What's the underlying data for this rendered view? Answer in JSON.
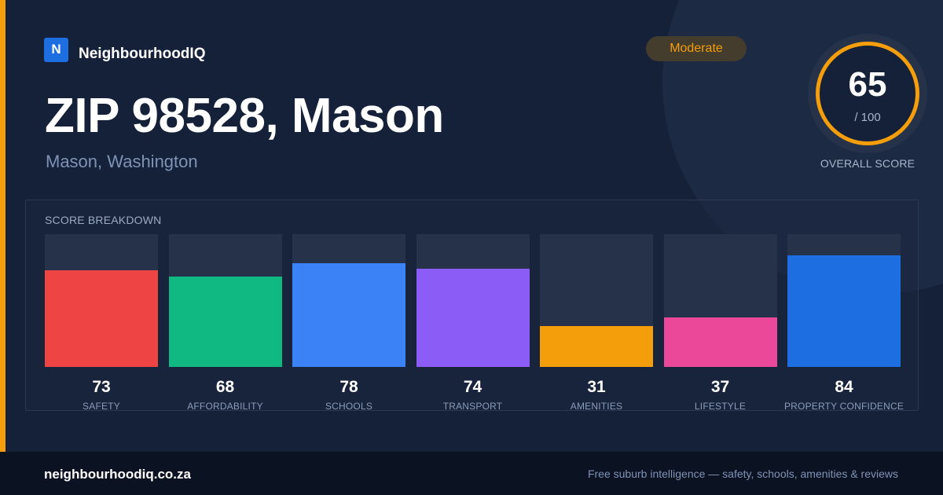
{
  "brand": {
    "logo_letter": "N",
    "name": "NeighbourhoodIQ"
  },
  "header": {
    "title": "ZIP 98528, Mason",
    "subtitle": "Mason, Washington"
  },
  "badge": {
    "label": "Moderate"
  },
  "overall_score": {
    "value": "65",
    "max_label": "/ 100",
    "caption": "OVERALL SCORE",
    "value_fraction": 0.65
  },
  "breakdown": {
    "title": "SCORE BREAKDOWN",
    "items": [
      {
        "value": 73,
        "label": "SAFETY",
        "color": "#ef4444"
      },
      {
        "value": 68,
        "label": "AFFORDABILITY",
        "color": "#10b981"
      },
      {
        "value": 78,
        "label": "SCHOOLS",
        "color": "#3b82f6"
      },
      {
        "value": 74,
        "label": "TRANSPORT",
        "color": "#8b5cf6"
      },
      {
        "value": 31,
        "label": "AMENITIES",
        "color": "#f59e0b"
      },
      {
        "value": 37,
        "label": "LIFESTYLE",
        "color": "#ec4899"
      },
      {
        "value": 84,
        "label": "PROPERTY CONFIDENCE",
        "color": "#1d6ee0"
      }
    ]
  },
  "chart_data": {
    "type": "bar",
    "categories": [
      "SAFETY",
      "AFFORDABILITY",
      "SCHOOLS",
      "TRANSPORT",
      "AMENITIES",
      "LIFESTYLE",
      "PROPERTY CONFIDENCE"
    ],
    "values": [
      73,
      68,
      78,
      74,
      31,
      37,
      84
    ],
    "title": "SCORE BREAKDOWN",
    "ylim": [
      0,
      100
    ]
  },
  "footer": {
    "url": "neighbourhoodiq.co.za",
    "tagline": "Free suburb intelligence — safety, schools, amenities & reviews"
  },
  "colors": {
    "accent": "#f59e0b",
    "background": "#152039",
    "footer_bg": "#0b1221",
    "brand_blue": "#1d6ee0"
  }
}
